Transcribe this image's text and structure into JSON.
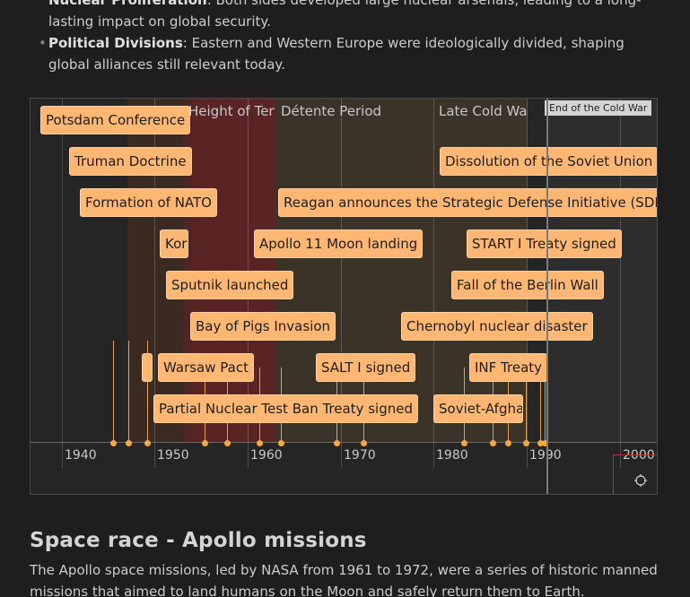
{
  "bullets": [
    {
      "title": "Nuclear Proliferation",
      "text": ": Both sides developed large nuclear arsenals, leading to a long-lasting impact on global security."
    },
    {
      "title": "Political Divisions",
      "text": ": Eastern and Western Europe were ideologically divided, shaping global alliances still relevant today."
    }
  ],
  "timeline": {
    "bands": [
      {
        "label": "Height of Tensions",
        "color": "#3a2a22"
      },
      {
        "label": "",
        "color": "#5a2424"
      },
      {
        "label": "Détente Period",
        "color": "#3b3328"
      },
      {
        "label": "Late Cold War",
        "color": "#3b3328"
      },
      {
        "label": "End of the Cold War",
        "color": "#2d2d2d"
      }
    ],
    "ticks": [
      "1940",
      "1950",
      "1960",
      "1970",
      "1980",
      "1990",
      "2000"
    ],
    "events": [
      {
        "label": "Potsdam Conference"
      },
      {
        "label": "Truman Doctrine"
      },
      {
        "label": "Formation of NATO"
      },
      {
        "label": "Korean War"
      },
      {
        "label": "Sputnik launched"
      },
      {
        "label": "Bay of Pigs Invasion"
      },
      {
        "label": "Warsaw Pact"
      },
      {
        "label": "Partial Nuclear Test Ban Treaty signed"
      },
      {
        "label": "Apollo 11 Moon landing"
      },
      {
        "label": "SALT I signed"
      },
      {
        "label": "Dissolution of the Soviet Union"
      },
      {
        "label": "Reagan announces the Strategic Defense Initiative (SDI)"
      },
      {
        "label": "START I Treaty signed"
      },
      {
        "label": "Fall of the Berlin Wall"
      },
      {
        "label": "Chernobyl nuclear disaster"
      },
      {
        "label": "INF Treaty"
      },
      {
        "label": "Soviet-Afghan War"
      },
      {
        "label": ""
      }
    ],
    "current_time_icon": "crosshair-icon"
  },
  "section": {
    "title": "Space race - Apollo missions",
    "paragraph": "The Apollo space missions, led by NASA from 1961 to 1972, were a series of historic manned missions that aimed to land humans on the Moon and safely return them to Earth. Highlighted"
  }
}
